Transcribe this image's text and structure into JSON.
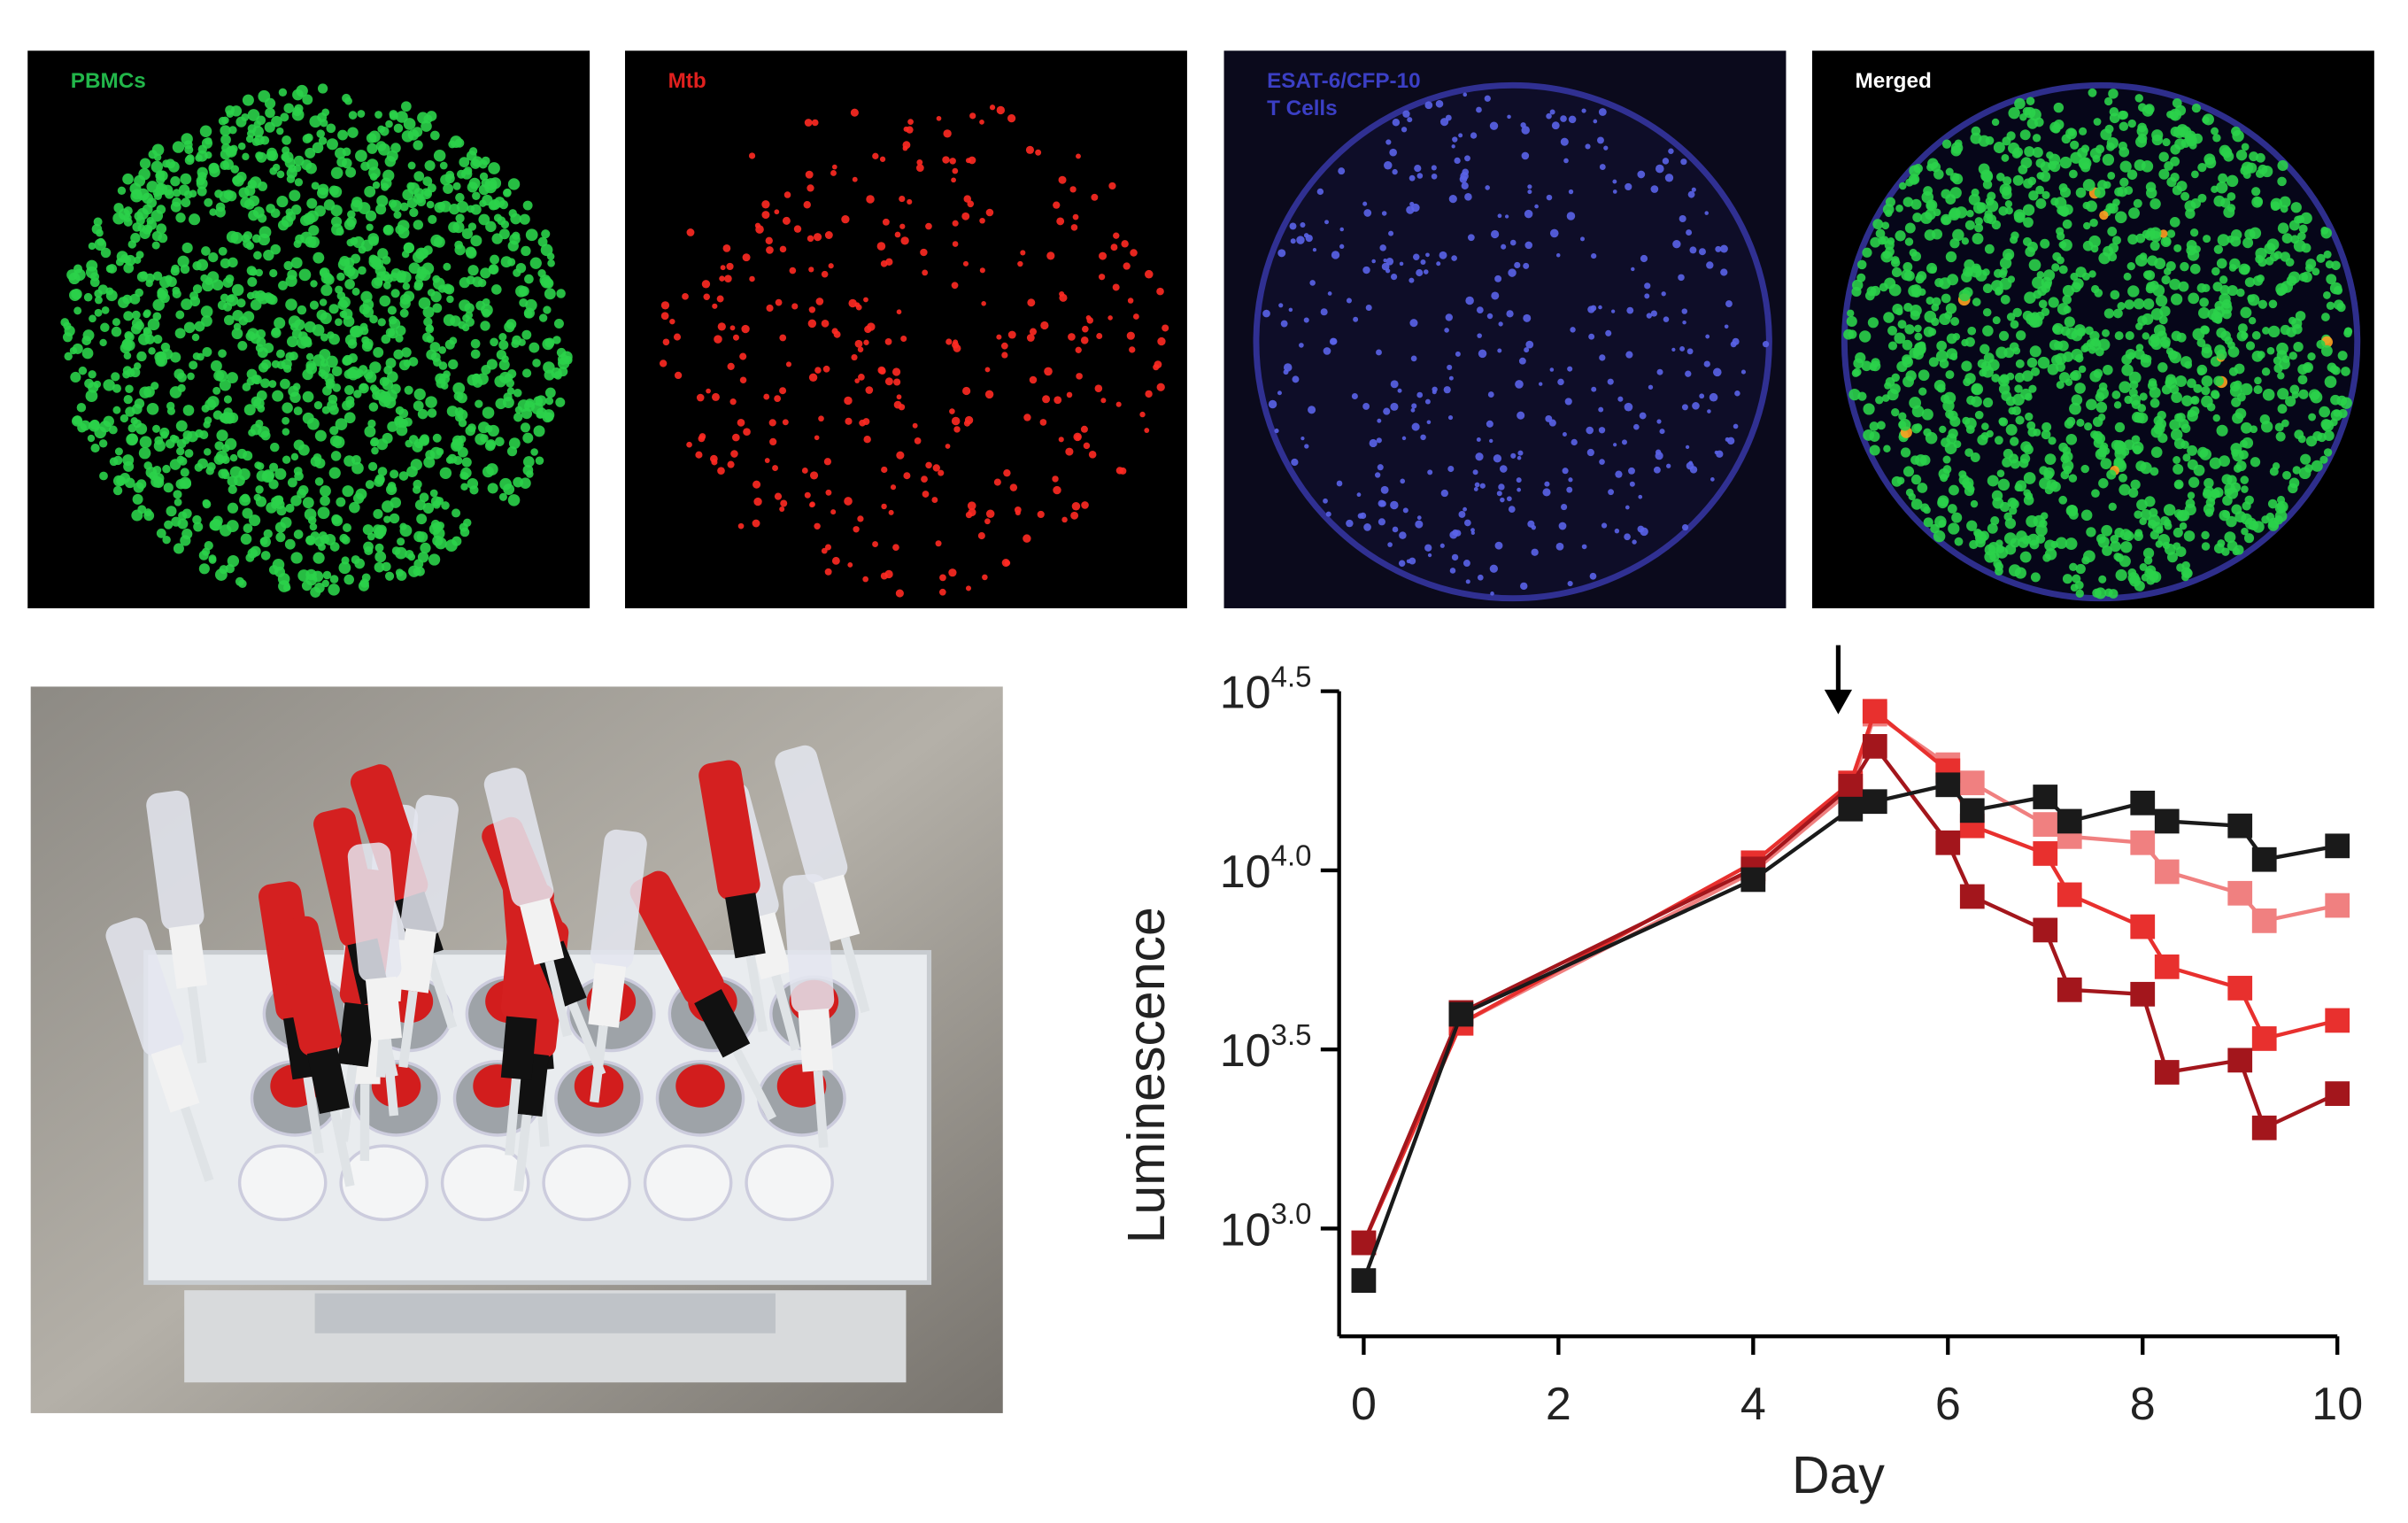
{
  "panels": [
    {
      "lines": [
        "PBMCs"
      ],
      "color": "#22b64a"
    },
    {
      "lines": [
        "Mtb"
      ],
      "color": "#e0201e"
    },
    {
      "lines": [
        "ESAT-6/CFP-10",
        "T Cells"
      ],
      "color": "#3b3fc4"
    },
    {
      "lines": [
        "Merged"
      ],
      "color": "#ffffff"
    }
  ],
  "chart_data": {
    "type": "line",
    "xlabel": "Day",
    "ylabel": "Luminescence",
    "x": [
      0,
      1,
      4,
      5,
      5.25,
      6,
      6.25,
      7,
      7.25,
      8,
      8.25,
      9,
      9.25,
      10
    ],
    "xlim": [
      0,
      10
    ],
    "xticks": [
      0,
      2,
      4,
      6,
      8,
      10
    ],
    "log_scale": true,
    "ylim": [
      500,
      31623
    ],
    "yticks": [
      {
        "value": 1000,
        "base": "10",
        "exponent": "3.0"
      },
      {
        "value": 3162.28,
        "base": "10",
        "exponent": "3.5"
      },
      {
        "value": 10000,
        "base": "10",
        "exponent": "4.0"
      },
      {
        "value": 31622.8,
        "base": "10",
        "exponent": "4.5"
      }
    ],
    "arrow": {
      "x": 5
    },
    "series": [
      {
        "color": "#f08080",
        "values": [
          912,
          3740,
          9900,
          16680,
          27290,
          19720,
          17540,
          13430,
          12420,
          11940,
          9910,
          8630,
          7230,
          7980
        ]
      },
      {
        "color": "#e8302e",
        "values": [
          912,
          3740,
          10500,
          17540,
          27800,
          18970,
          13310,
          11140,
          8550,
          6960,
          5380,
          4690,
          3390,
          3810
        ]
      },
      {
        "color": "#a3161c",
        "values": [
          912,
          4010,
          10090,
          17180,
          22190,
          11940,
          8450,
          6810,
          4640,
          4510,
          2730,
          2950,
          1910,
          2380
        ]
      },
      {
        "color": "#1a1a1a",
        "values": [
          716,
          3963,
          9419,
          14825,
          15560,
          17330,
          14690,
          16030,
          13710,
          15420,
          13710,
          13310,
          10720,
          11700
        ]
      }
    ]
  }
}
